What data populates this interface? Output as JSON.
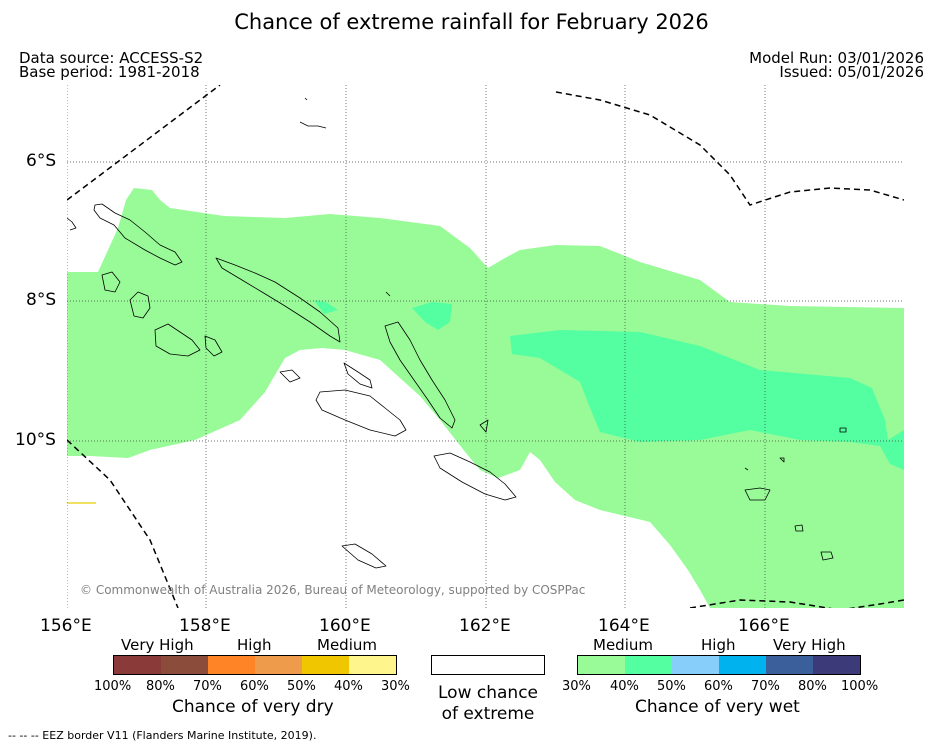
{
  "title": "Chance of extreme rainfall for February 2026",
  "header": {
    "data_source": "Data source: ACCESS-S2",
    "base_period": "Base period: 1981-2018",
    "model_run": "Model Run: 03/01/2026",
    "issued": "Issued: 05/01/2026"
  },
  "map": {
    "lat_labels": [
      "6°S",
      "8°S",
      "10°S"
    ],
    "lon_labels": [
      "156°E",
      "158°E",
      "160°E",
      "162°E",
      "164°E",
      "166°E"
    ],
    "copyright": "© Commonwealth of Australia 2026, Bureau of Meteorology, supported by COSPPac"
  },
  "legend": {
    "dry": {
      "title": "Chance of very dry",
      "categories": [
        "Very High",
        "High",
        "Medium"
      ],
      "ticks": [
        "100%",
        "80%",
        "70%",
        "60%",
        "50%",
        "40%",
        "30%"
      ],
      "colors": [
        "#8b3a3a",
        "#8b4c3b",
        "#ff8426",
        "#ee9b4b",
        "#f0c600",
        "#fef58d"
      ]
    },
    "neutral": {
      "line1": "Low chance",
      "line2": "of extreme",
      "color": "#ffffff"
    },
    "wet": {
      "title": "Chance of very wet",
      "categories": [
        "Medium",
        "High",
        "Very High"
      ],
      "ticks": [
        "30%",
        "40%",
        "50%",
        "60%",
        "70%",
        "80%",
        "100%"
      ],
      "colors": [
        "#98fb98",
        "#54ffa1",
        "#87cefa",
        "#00b2ee",
        "#3a5f9a",
        "#3d3a7a"
      ]
    }
  },
  "footer": "--  --  -- EEZ border V11 (Flanders Marine Institute, 2019)."
}
